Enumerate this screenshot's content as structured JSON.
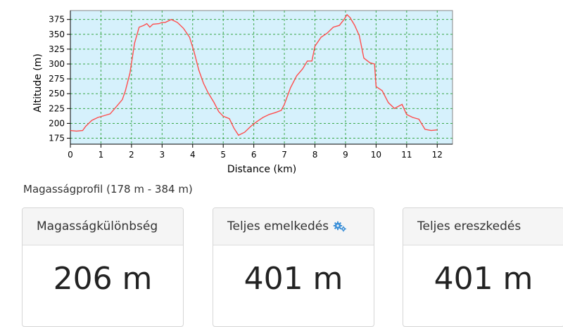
{
  "chart_data": {
    "type": "line",
    "xlabel": "Distance (km)",
    "ylabel": "Altitude (m)",
    "xlim": [
      0,
      12.5
    ],
    "ylim": [
      165,
      390
    ],
    "xticks": [
      0,
      1,
      2,
      3,
      4,
      5,
      6,
      7,
      8,
      9,
      10,
      11,
      12
    ],
    "yticks": [
      175,
      200,
      225,
      250,
      275,
      300,
      325,
      350,
      375
    ],
    "grid": true,
    "line_color": "#ff4d4d",
    "plot_background": "#d6f1fc",
    "series": [
      {
        "points": [
          [
            0,
            188
          ],
          [
            0.2,
            187
          ],
          [
            0.4,
            188
          ],
          [
            0.5,
            195
          ],
          [
            0.7,
            205
          ],
          [
            0.9,
            210
          ],
          [
            1.1,
            213
          ],
          [
            1.3,
            216
          ],
          [
            1.5,
            228
          ],
          [
            1.7,
            240
          ],
          [
            1.8,
            255
          ],
          [
            1.95,
            285
          ],
          [
            2.1,
            335
          ],
          [
            2.25,
            362
          ],
          [
            2.4,
            365
          ],
          [
            2.5,
            368
          ],
          [
            2.6,
            362
          ],
          [
            2.7,
            367
          ],
          [
            2.9,
            368
          ],
          [
            3.0,
            370
          ],
          [
            3.1,
            370
          ],
          [
            3.3,
            375
          ],
          [
            3.5,
            370
          ],
          [
            3.7,
            360
          ],
          [
            3.9,
            345
          ],
          [
            4.05,
            320
          ],
          [
            4.2,
            290
          ],
          [
            4.35,
            268
          ],
          [
            4.5,
            252
          ],
          [
            4.7,
            235
          ],
          [
            4.85,
            220
          ],
          [
            5.0,
            212
          ],
          [
            5.2,
            208
          ],
          [
            5.35,
            192
          ],
          [
            5.5,
            180
          ],
          [
            5.7,
            185
          ],
          [
            5.9,
            195
          ],
          [
            6.1,
            203
          ],
          [
            6.3,
            210
          ],
          [
            6.5,
            215
          ],
          [
            6.7,
            218
          ],
          [
            6.9,
            222
          ],
          [
            7.0,
            232
          ],
          [
            7.2,
            260
          ],
          [
            7.4,
            280
          ],
          [
            7.6,
            292
          ],
          [
            7.75,
            305
          ],
          [
            7.9,
            305
          ],
          [
            8.0,
            330
          ],
          [
            8.2,
            345
          ],
          [
            8.4,
            352
          ],
          [
            8.6,
            362
          ],
          [
            8.8,
            365
          ],
          [
            8.95,
            375
          ],
          [
            9.05,
            383
          ],
          [
            9.15,
            378
          ],
          [
            9.3,
            365
          ],
          [
            9.45,
            348
          ],
          [
            9.6,
            310
          ],
          [
            9.8,
            302
          ],
          [
            9.95,
            300
          ],
          [
            10.0,
            262
          ],
          [
            10.2,
            255
          ],
          [
            10.4,
            235
          ],
          [
            10.6,
            225
          ],
          [
            10.85,
            232
          ],
          [
            11.0,
            215
          ],
          [
            11.2,
            210
          ],
          [
            11.4,
            207
          ],
          [
            11.6,
            190
          ],
          [
            11.8,
            188
          ],
          [
            12.0,
            189
          ]
        ]
      }
    ]
  },
  "summary": {
    "caption": "Magasságprofil (178 m - 384 m)"
  },
  "stats": {
    "diff_label": "Magasságkülönbség",
    "diff_value": "206 m",
    "ascent_label": "Teljes emelkedés",
    "ascent_value": "401 m",
    "descent_label": "Teljes ereszkedés",
    "descent_value": "401 m",
    "icon_name": "gears-icon",
    "icon_color": "#3a8fd8"
  }
}
